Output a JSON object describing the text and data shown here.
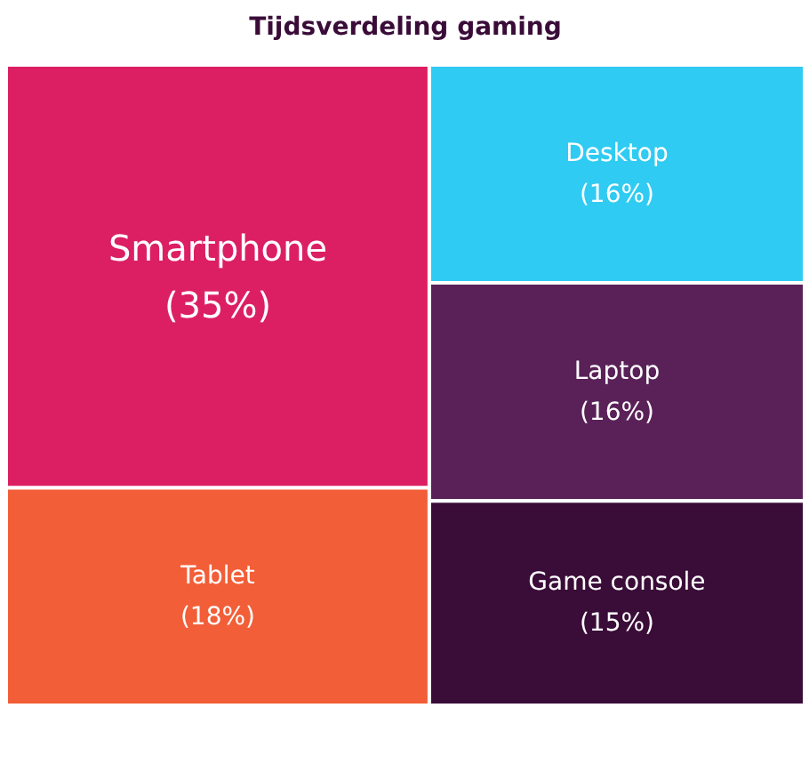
{
  "chart_data": {
    "type": "other",
    "title": "Tijdsverdeling gaming",
    "categories": [
      "Smartphone",
      "Tablet",
      "Desktop",
      "Laptop",
      "Game console"
    ],
    "values": [
      35,
      18,
      16,
      16,
      15
    ],
    "value_labels": [
      "(35%)",
      "(18%)",
      "(16%)",
      "(16%)",
      "(15%)"
    ],
    "colors": [
      "#dc1f63",
      "#f25e37",
      "#30cbf2",
      "#5a2158",
      "#3a0c38"
    ]
  }
}
